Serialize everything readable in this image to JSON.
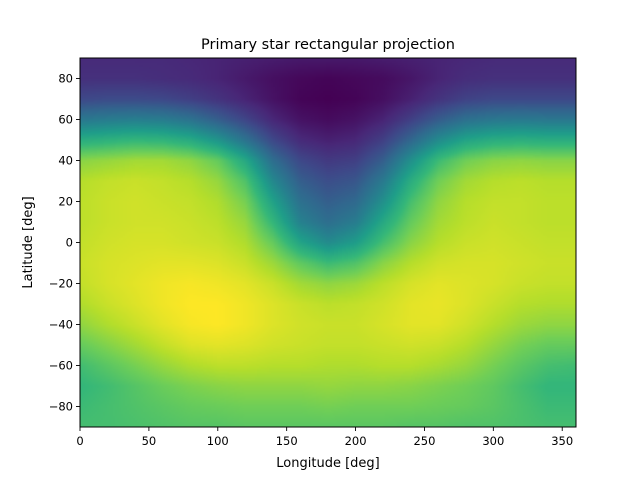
{
  "chart_data": {
    "type": "heatmap",
    "title": "Primary star rectangular projection",
    "xlabel": "Longitude [deg]",
    "ylabel": "Latitude [deg]",
    "xlim": [
      0,
      360
    ],
    "ylim": [
      -90,
      90
    ],
    "xticks": [
      0,
      50,
      100,
      150,
      200,
      250,
      300,
      350
    ],
    "yticks": [
      -80,
      -60,
      -40,
      -20,
      0,
      20,
      40,
      60,
      80
    ],
    "xtick_labels": [
      "0",
      "50",
      "100",
      "150",
      "200",
      "250",
      "300",
      "350"
    ],
    "ytick_labels": [
      "−80",
      "−60",
      "−40",
      "−20",
      "0",
      "20",
      "40",
      "60",
      "80"
    ],
    "colormap": "viridis",
    "grid": false,
    "colormap_stops": [
      "#440154",
      "#482878",
      "#3e4989",
      "#31688e",
      "#26828e",
      "#1f9e89",
      "#35b779",
      "#6ece58",
      "#b5de2b",
      "#fde725"
    ],
    "lon": [
      0,
      20,
      40,
      60,
      80,
      100,
      120,
      140,
      160,
      180,
      200,
      220,
      240,
      260,
      280,
      300,
      320,
      340,
      360
    ],
    "lat": [
      -90,
      -80,
      -70,
      -60,
      -50,
      -40,
      -30,
      -20,
      -10,
      0,
      10,
      20,
      30,
      40,
      50,
      60,
      70,
      80,
      90
    ],
    "values": [
      [
        0.7,
        0.7,
        0.71,
        0.72,
        0.73,
        0.73,
        0.74,
        0.74,
        0.74,
        0.74,
        0.74,
        0.74,
        0.73,
        0.73,
        0.72,
        0.72,
        0.71,
        0.7,
        0.7
      ],
      [
        0.68,
        0.7,
        0.72,
        0.74,
        0.76,
        0.77,
        0.78,
        0.78,
        0.78,
        0.79,
        0.78,
        0.78,
        0.78,
        0.77,
        0.76,
        0.74,
        0.71,
        0.68,
        0.68
      ],
      [
        0.66,
        0.69,
        0.73,
        0.77,
        0.8,
        0.82,
        0.83,
        0.83,
        0.83,
        0.84,
        0.83,
        0.83,
        0.82,
        0.8,
        0.78,
        0.75,
        0.7,
        0.66,
        0.66
      ],
      [
        0.69,
        0.74,
        0.79,
        0.84,
        0.88,
        0.9,
        0.9,
        0.89,
        0.89,
        0.88,
        0.88,
        0.89,
        0.89,
        0.87,
        0.84,
        0.79,
        0.74,
        0.7,
        0.69
      ],
      [
        0.76,
        0.81,
        0.86,
        0.91,
        0.95,
        0.96,
        0.95,
        0.93,
        0.92,
        0.91,
        0.91,
        0.92,
        0.93,
        0.92,
        0.89,
        0.84,
        0.79,
        0.76,
        0.76
      ],
      [
        0.83,
        0.88,
        0.92,
        0.96,
        0.99,
        1.0,
        0.98,
        0.95,
        0.93,
        0.92,
        0.92,
        0.94,
        0.96,
        0.96,
        0.93,
        0.89,
        0.85,
        0.83,
        0.83
      ],
      [
        0.88,
        0.92,
        0.95,
        0.98,
        1.0,
        1.0,
        0.98,
        0.95,
        0.92,
        0.9,
        0.91,
        0.93,
        0.96,
        0.97,
        0.95,
        0.92,
        0.89,
        0.88,
        0.88
      ],
      [
        0.91,
        0.94,
        0.96,
        0.98,
        0.99,
        0.98,
        0.96,
        0.92,
        0.86,
        0.83,
        0.85,
        0.9,
        0.94,
        0.96,
        0.95,
        0.94,
        0.92,
        0.91,
        0.91
      ],
      [
        0.92,
        0.94,
        0.95,
        0.96,
        0.96,
        0.95,
        0.92,
        0.85,
        0.75,
        0.68,
        0.72,
        0.82,
        0.89,
        0.93,
        0.94,
        0.94,
        0.93,
        0.92,
        0.92
      ],
      [
        0.91,
        0.93,
        0.94,
        0.94,
        0.93,
        0.92,
        0.88,
        0.76,
        0.58,
        0.48,
        0.55,
        0.7,
        0.82,
        0.89,
        0.92,
        0.93,
        0.92,
        0.91,
        0.91
      ],
      [
        0.9,
        0.92,
        0.93,
        0.93,
        0.92,
        0.9,
        0.84,
        0.66,
        0.44,
        0.36,
        0.42,
        0.6,
        0.76,
        0.86,
        0.9,
        0.92,
        0.91,
        0.9,
        0.9
      ],
      [
        0.9,
        0.92,
        0.93,
        0.92,
        0.91,
        0.88,
        0.79,
        0.57,
        0.37,
        0.3,
        0.34,
        0.5,
        0.7,
        0.83,
        0.89,
        0.91,
        0.91,
        0.9,
        0.9
      ],
      [
        0.89,
        0.91,
        0.92,
        0.91,
        0.89,
        0.84,
        0.72,
        0.47,
        0.3,
        0.24,
        0.27,
        0.41,
        0.62,
        0.78,
        0.86,
        0.89,
        0.9,
        0.89,
        0.89
      ],
      [
        0.82,
        0.84,
        0.86,
        0.86,
        0.83,
        0.76,
        0.6,
        0.36,
        0.22,
        0.17,
        0.19,
        0.3,
        0.5,
        0.68,
        0.78,
        0.82,
        0.83,
        0.82,
        0.82
      ],
      [
        0.62,
        0.64,
        0.66,
        0.65,
        0.61,
        0.52,
        0.38,
        0.22,
        0.12,
        0.09,
        0.11,
        0.19,
        0.33,
        0.48,
        0.58,
        0.62,
        0.63,
        0.62,
        0.62
      ],
      [
        0.4,
        0.42,
        0.43,
        0.42,
        0.38,
        0.3,
        0.21,
        0.11,
        0.05,
        0.03,
        0.05,
        0.1,
        0.19,
        0.29,
        0.37,
        0.4,
        0.41,
        0.4,
        0.4
      ],
      [
        0.22,
        0.23,
        0.23,
        0.22,
        0.19,
        0.15,
        0.1,
        0.05,
        0.01,
        0.0,
        0.01,
        0.04,
        0.09,
        0.15,
        0.2,
        0.22,
        0.22,
        0.22,
        0.22
      ],
      [
        0.14,
        0.14,
        0.14,
        0.13,
        0.12,
        0.1,
        0.07,
        0.04,
        0.02,
        0.01,
        0.02,
        0.03,
        0.06,
        0.1,
        0.13,
        0.14,
        0.14,
        0.14,
        0.14
      ],
      [
        0.12,
        0.12,
        0.12,
        0.12,
        0.11,
        0.1,
        0.09,
        0.08,
        0.07,
        0.07,
        0.07,
        0.08,
        0.09,
        0.1,
        0.11,
        0.12,
        0.12,
        0.12,
        0.12
      ]
    ]
  }
}
